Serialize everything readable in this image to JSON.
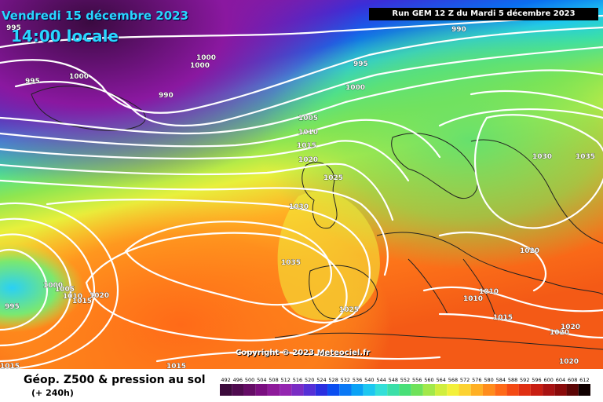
{
  "map": {
    "title_date": "Vendredi 15 décembre 2023",
    "title_time": "14:00 locale",
    "run_info": "Run GEM 12 Z du Mardi 5 décembre 2023",
    "copyright": "Copyright © 2023 Meteociel.fr",
    "legend_title": "Géop. Z500 & pression au sol",
    "legend_subtitle": "(+ 240h)",
    "scale_values": [
      "492",
      "496",
      "500",
      "504",
      "508",
      "512",
      "516",
      "520",
      "524",
      "528",
      "532",
      "536",
      "540",
      "544",
      "548",
      "552",
      "556",
      "560",
      "564",
      "568",
      "572",
      "576",
      "580",
      "584",
      "588",
      "592",
      "596",
      "600",
      "604",
      "608",
      "612"
    ],
    "scale_colors": [
      "#3b0a3b",
      "#4f0b4f",
      "#650c66",
      "#7a0e80",
      "#8e1a9a",
      "#9426b0",
      "#7a2dc4",
      "#5530d6",
      "#2a2fe0",
      "#0b4ef0",
      "#0a78f5",
      "#0aa2f5",
      "#1dc7f0",
      "#34dfd8",
      "#3bdfa8",
      "#48df78",
      "#6fe25a",
      "#a2e84a",
      "#d0ee3e",
      "#f3f03a",
      "#fcd231",
      "#ffb024",
      "#ff8c1c",
      "#ff6a18",
      "#f44a14",
      "#e02f12",
      "#c81e12",
      "#a81212",
      "#8a0a0a",
      "#5c0505",
      "#100000"
    ],
    "isobar_labels": [
      {
        "text": "995"
      },
      {
        "text": "1000"
      },
      {
        "text": "990"
      },
      {
        "text": "995"
      },
      {
        "text": "1000"
      },
      {
        "text": "1005"
      },
      {
        "text": "1010"
      },
      {
        "text": "1015"
      },
      {
        "text": "1020"
      },
      {
        "text": "1025"
      },
      {
        "text": "1030"
      },
      {
        "text": "1035"
      },
      {
        "text": "1030"
      },
      {
        "text": "1035"
      },
      {
        "text": "1020"
      },
      {
        "text": "1025"
      },
      {
        "text": "1010"
      },
      {
        "text": "1010"
      },
      {
        "text": "1015"
      },
      {
        "text": "1020"
      },
      {
        "text": "1020"
      },
      {
        "text": "1020"
      },
      {
        "text": "1015"
      },
      {
        "text": "995"
      },
      {
        "text": "1000"
      },
      {
        "text": "1005"
      },
      {
        "text": "1010"
      },
      {
        "text": "1015"
      },
      {
        "text": "1020"
      },
      {
        "text": "1015"
      },
      {
        "text": "1000"
      },
      {
        "text": "1000"
      },
      {
        "text": "995"
      },
      {
        "text": "990"
      }
    ]
  }
}
